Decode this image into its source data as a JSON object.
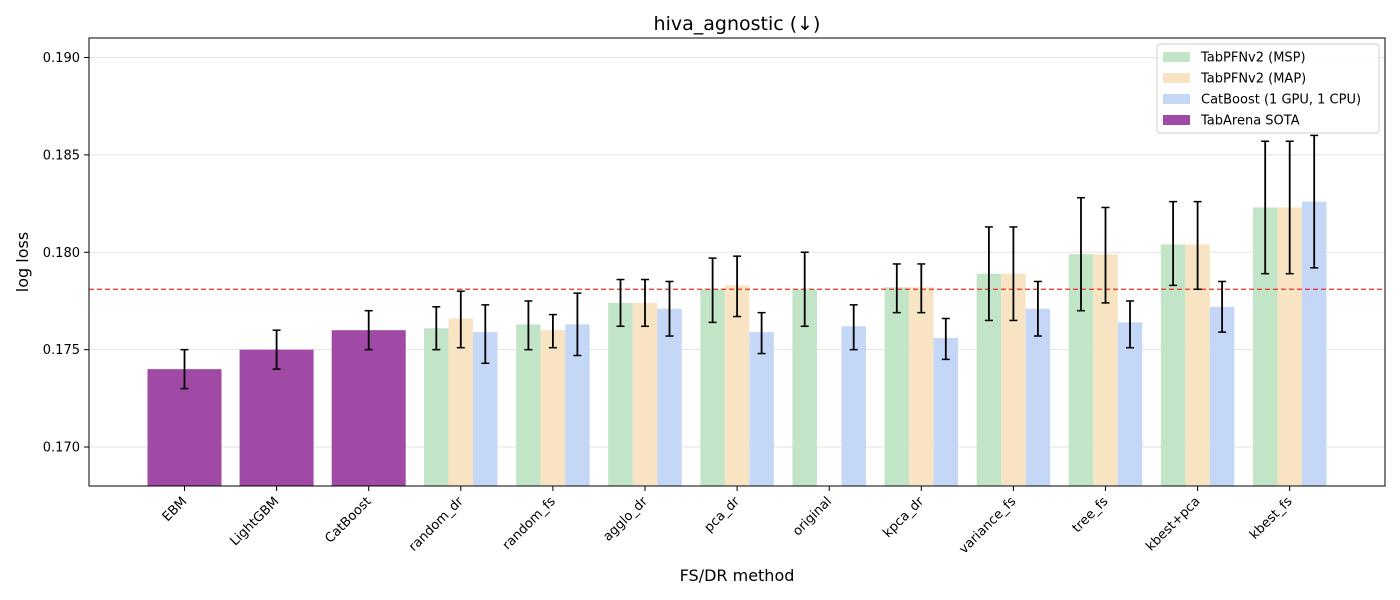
{
  "chart_data": {
    "type": "bar",
    "title": "hiva_agnostic (↓)",
    "xlabel": "FS/DR method",
    "ylabel": "log loss",
    "ylim": [
      0.168,
      0.191
    ],
    "yticks": [
      0.17,
      0.175,
      0.18,
      0.185,
      0.19
    ],
    "grid": "horizontal",
    "legend_position": "top-right",
    "reference_line": {
      "value": 0.1781,
      "style": "dashed",
      "color": "#e8332a"
    },
    "categories": [
      "EBM",
      "LightGBM",
      "CatBoost",
      "random_dr",
      "random_fs",
      "agglo_dr",
      "pca_dr",
      "original",
      "kpca_dr",
      "variance_fs",
      "tree_fs",
      "kbest+pca",
      "kbest_fs"
    ],
    "sota": {
      "name": "TabArena SOTA",
      "color": "#a04aa6",
      "values": [
        0.174,
        0.175,
        0.176
      ],
      "err_low": [
        0.173,
        0.174,
        0.175
      ],
      "err_high": [
        0.175,
        0.176,
        0.177
      ]
    },
    "series": [
      {
        "name": "TabPFNv2 (MSP)",
        "color": "#c2e4c7",
        "values": [
          null,
          null,
          null,
          0.1761,
          0.1763,
          0.1774,
          0.1781,
          0.1781,
          0.1782,
          0.1789,
          0.1799,
          0.1804,
          0.1823
        ],
        "err_low": [
          null,
          null,
          null,
          0.175,
          0.175,
          0.1762,
          0.1764,
          0.1762,
          0.1769,
          0.1765,
          0.177,
          0.1783,
          0.1789
        ],
        "err_high": [
          null,
          null,
          null,
          0.1772,
          0.1775,
          0.1786,
          0.1797,
          0.18,
          0.1794,
          0.1813,
          0.1828,
          0.1826,
          0.1857
        ]
      },
      {
        "name": "TabPFNv2 (MAP)",
        "color": "#f8e3c3",
        "values": [
          null,
          null,
          null,
          0.1766,
          0.176,
          0.1774,
          0.1783,
          null,
          0.1782,
          0.1789,
          0.1799,
          0.1804,
          0.1823
        ],
        "err_low": [
          null,
          null,
          null,
          0.1751,
          0.1751,
          0.1762,
          0.1767,
          null,
          0.1769,
          0.1765,
          0.1774,
          0.1781,
          0.1789
        ],
        "err_high": [
          null,
          null,
          null,
          0.178,
          0.1768,
          0.1786,
          0.1798,
          null,
          0.1794,
          0.1813,
          0.1823,
          0.1826,
          0.1857
        ]
      },
      {
        "name": "CatBoost (1 GPU, 1 CPU)",
        "color": "#c5d7f7",
        "values": [
          null,
          null,
          null,
          0.1759,
          0.1763,
          0.1771,
          0.1759,
          0.1762,
          0.1756,
          0.1771,
          0.1764,
          0.1772,
          0.1826
        ],
        "err_low": [
          null,
          null,
          null,
          0.1743,
          0.1747,
          0.1757,
          0.1748,
          0.175,
          0.1745,
          0.1757,
          0.1751,
          0.1759,
          0.1792
        ],
        "err_high": [
          null,
          null,
          null,
          0.1773,
          0.1779,
          0.1785,
          0.1769,
          0.1773,
          0.1766,
          0.1785,
          0.1775,
          0.1785,
          0.186
        ]
      }
    ]
  }
}
